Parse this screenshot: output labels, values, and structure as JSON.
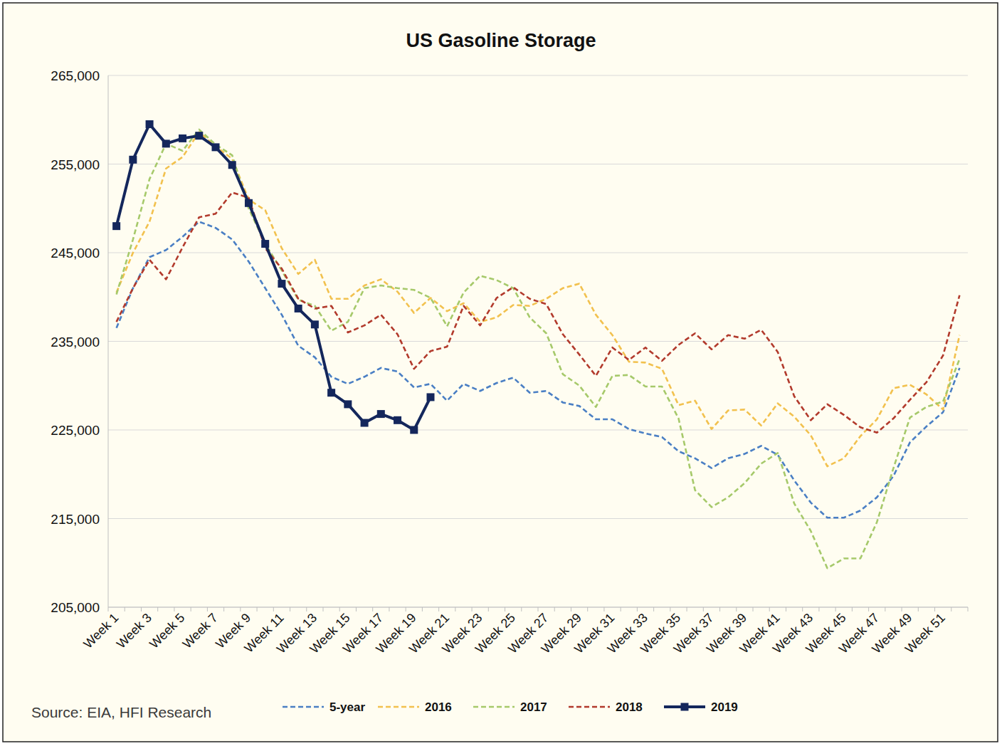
{
  "chart_data": {
    "type": "line",
    "title": "US Gasoline Storage",
    "annotations": [
      "Source: EIA, HFI Research"
    ],
    "categories": [
      "Week 1",
      null,
      "Week 3",
      null,
      "Week 5",
      null,
      "Week 7",
      null,
      "Week 9",
      null,
      "Week 11",
      null,
      "Week 13",
      null,
      "Week 15",
      null,
      "Week 17",
      null,
      "Week 19",
      null,
      "Week 21",
      null,
      "Week 23",
      null,
      "Week 25",
      null,
      "Week 27",
      null,
      "Week 29",
      null,
      "Week 31",
      null,
      "Week 33",
      null,
      "Week 35",
      null,
      "Week 37",
      null,
      "Week 39",
      null,
      "Week 41",
      null,
      "Week 43",
      null,
      "Week 45",
      null,
      "Week 47",
      null,
      "Week 49",
      null,
      "Week 51",
      null
    ],
    "ylim": [
      205000,
      265000
    ],
    "yticks": [
      {
        "value": 205000,
        "label": "205,000"
      },
      {
        "value": 215000,
        "label": "215,000"
      },
      {
        "value": 225000,
        "label": "225,000"
      },
      {
        "value": 235000,
        "label": "235,000"
      },
      {
        "value": 245000,
        "label": "245,000"
      },
      {
        "value": 255000,
        "label": "255,000"
      },
      {
        "value": 265000,
        "label": "265,000"
      }
    ],
    "grid": true,
    "legend": "bottom",
    "series": [
      {
        "name": "5-year",
        "color": "#4a7fc4",
        "line_style": "dashed",
        "marker": "none",
        "values": [
          236500,
          241000,
          244500,
          245300,
          246800,
          248500,
          247800,
          246500,
          244000,
          241000,
          238000,
          234500,
          233200,
          231000,
          230200,
          231000,
          232000,
          231600,
          229800,
          230200,
          228300,
          230200,
          229400,
          230300,
          230900,
          229200,
          229400,
          228100,
          227700,
          226200,
          226200,
          225100,
          224600,
          224200,
          222600,
          221800,
          220700,
          221800,
          222300,
          223200,
          222200,
          219300,
          216800,
          215100,
          215100,
          215900,
          217400,
          219800,
          223600,
          225400,
          227000,
          232000
        ]
      },
      {
        "name": "2016",
        "color": "#f2c14e",
        "line_style": "dashed",
        "marker": "none",
        "values": [
          240500,
          245000,
          248500,
          254500,
          255800,
          258600,
          257000,
          255600,
          251000,
          249800,
          245500,
          242600,
          244200,
          239800,
          239800,
          241300,
          242000,
          240600,
          238200,
          239900,
          238400,
          239300,
          237200,
          237700,
          239100,
          239000,
          239800,
          241000,
          241500,
          238000,
          235700,
          232700,
          232600,
          231900,
          227800,
          228300,
          225100,
          227200,
          227300,
          225500,
          228000,
          226500,
          224400,
          220900,
          221800,
          224300,
          226200,
          229700,
          230100,
          229000,
          227300,
          235700
        ]
      },
      {
        "name": "2017",
        "color": "#a6c96a",
        "line_style": "dashed",
        "marker": "none",
        "values": [
          240300,
          246500,
          253300,
          257300,
          256500,
          258900,
          257200,
          256000,
          250000,
          246000,
          243000,
          239700,
          239000,
          236200,
          237200,
          241000,
          241300,
          241000,
          240800,
          239900,
          236700,
          240500,
          242400,
          241900,
          241000,
          237700,
          235900,
          231300,
          230000,
          227600,
          231100,
          231200,
          229900,
          229900,
          226300,
          218200,
          216300,
          217400,
          219000,
          221200,
          222400,
          216700,
          213600,
          209400,
          210500,
          210500,
          214600,
          220700,
          226400,
          227600,
          228200,
          233000
        ]
      },
      {
        "name": "2018",
        "color": "#b23a2c",
        "line_style": "dashed",
        "marker": "none",
        "values": [
          237200,
          241000,
          244200,
          242000,
          245600,
          249000,
          249400,
          251800,
          251200,
          245500,
          243200,
          239800,
          238700,
          239000,
          236000,
          236800,
          238000,
          235800,
          231900,
          233900,
          234400,
          239000,
          236800,
          239900,
          241100,
          239800,
          239200,
          235800,
          233500,
          231100,
          234300,
          232900,
          234300,
          232800,
          234600,
          235900,
          234100,
          235700,
          235300,
          236300,
          233800,
          228800,
          226100,
          227900,
          226700,
          225300,
          224700,
          226300,
          228400,
          230400,
          233400,
          240200
        ]
      },
      {
        "name": "2019",
        "color": "#14275c",
        "line_style": "solid",
        "marker": "square",
        "values": [
          248000,
          255500,
          259500,
          257300,
          257900,
          258200,
          256900,
          254900,
          250600,
          246000,
          241500,
          238700,
          236900,
          229200,
          227900,
          225800,
          226800,
          226100,
          225000,
          228700,
          null,
          null,
          null,
          null,
          null,
          null,
          null,
          null,
          null,
          null,
          null,
          null,
          null,
          null,
          null,
          null,
          null,
          null,
          null,
          null,
          null,
          null,
          null,
          null,
          null,
          null,
          null,
          null,
          null,
          null,
          null,
          null
        ]
      }
    ]
  }
}
